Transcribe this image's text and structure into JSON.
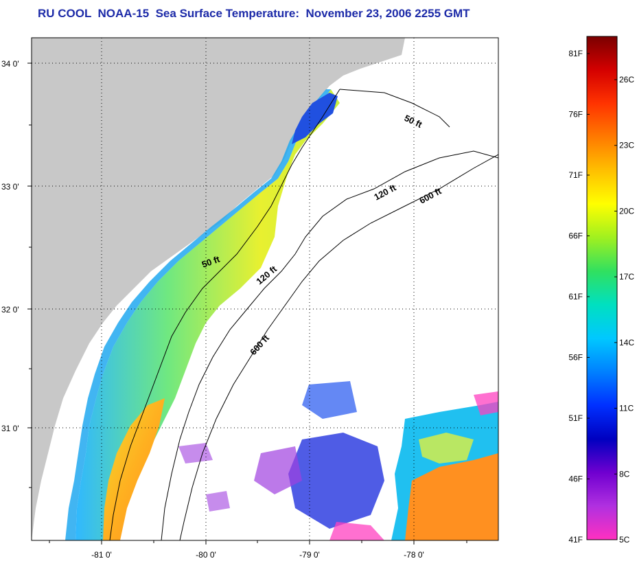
{
  "title": "RU COOL  NOAA-15  Sea Surface Temperature:  November 23, 2006 2255 GMT",
  "colors": {
    "title": "#1c2aa8",
    "land": "#c8c8c8",
    "ocean": "#ffffff",
    "grid": "#000000"
  },
  "map": {
    "lat_ticks": [
      "34 0'",
      "33 0'",
      "32 0'",
      "31 0'"
    ],
    "lon_ticks": [
      "-81 0'",
      "-80 0'",
      "-79 0'",
      "-78 0'"
    ],
    "grid": "dotted",
    "contour_labels": {
      "shelf_50_north": "50 ft",
      "shelf_50_south": "50 ft",
      "shelf_120_north": "120 ft",
      "shelf_120_south": "120 ft",
      "shelf_600_north": "600 ft",
      "shelf_600_south": "600 ft"
    }
  },
  "colorbar": {
    "fahrenheit_labels": [
      "81F",
      "76F",
      "71F",
      "66F",
      "61F",
      "56F",
      "51F",
      "46F",
      "41F"
    ],
    "celsius_labels": [
      "26C",
      "23C",
      "20C",
      "17C",
      "14C",
      "11C",
      "8C",
      "5C"
    ],
    "gradient_stops": [
      "#7a0000",
      "#d40000",
      "#ff3300",
      "#ff7a00",
      "#ffc000",
      "#ffff00",
      "#a0f020",
      "#30e060",
      "#00e0c0",
      "#00c8ff",
      "#0080ff",
      "#0030ff",
      "#0000c0",
      "#7000d0",
      "#b030e0",
      "#ff30c0"
    ]
  }
}
